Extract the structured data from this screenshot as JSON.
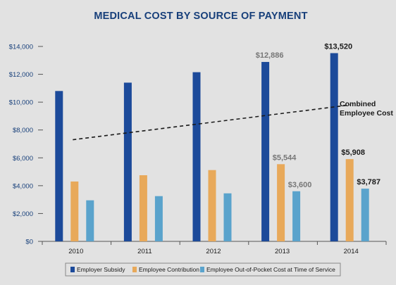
{
  "chart_data": {
    "type": "bar",
    "title": "MEDICAL COST BY SOURCE OF PAYMENT",
    "categories": [
      "2010",
      "2011",
      "2012",
      "2013",
      "2014"
    ],
    "ylim": [
      0,
      14000
    ],
    "yticks": [
      0,
      2000,
      4000,
      6000,
      8000,
      10000,
      12000,
      14000
    ],
    "ytick_labels": [
      "$0",
      "$2,000",
      "$4,000",
      "$6,000",
      "$8,000",
      "$10,000",
      "$12,000",
      "$14,000"
    ],
    "grid": false,
    "legend_position": "bottom",
    "series": [
      {
        "name": "Employer Subsidy",
        "color": "#1c4a9a",
        "values": [
          10800,
          11400,
          12150,
          12886,
          13520
        ],
        "data_labels": [
          null,
          null,
          null,
          "$12,886",
          "$13,520"
        ]
      },
      {
        "name": "Employee Contribution",
        "color": "#e8a95a",
        "values": [
          4300,
          4750,
          5120,
          5544,
          5908
        ],
        "data_labels": [
          null,
          null,
          null,
          "$5,544",
          "$5,908"
        ]
      },
      {
        "name": "Employee Out-of-Pocket Cost at Time of Service",
        "color": "#5aa3cc",
        "values": [
          2950,
          3250,
          3450,
          3600,
          3787
        ],
        "data_labels": [
          null,
          null,
          null,
          "$3,600",
          "$3,787"
        ]
      }
    ],
    "trend_line": {
      "style": "dashed",
      "color": "#1a1a1a",
      "start": {
        "x": "2010",
        "y": 7300
      },
      "end": {
        "x": "2014",
        "y": 9800
      }
    },
    "annotation": {
      "lines": [
        "Combined",
        "Employee Cost"
      ]
    },
    "label_colors": {
      "2013": "#777777",
      "2014": "#1a1a1a"
    }
  }
}
